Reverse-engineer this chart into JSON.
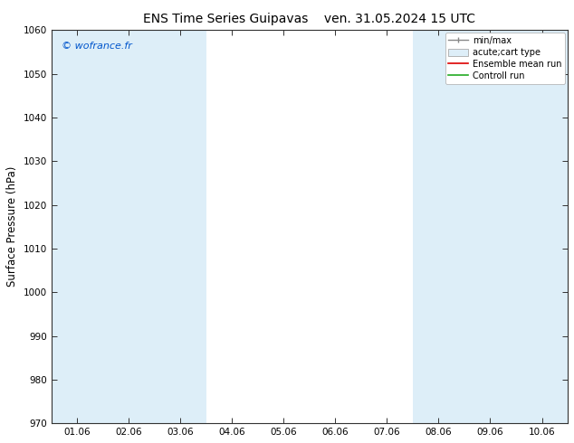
{
  "title_left": "ENS Time Series Guipavas",
  "title_right": "ven. 31.05.2024 15 UTC",
  "ylabel": "Surface Pressure (hPa)",
  "ylim": [
    970,
    1060
  ],
  "yticks": [
    970,
    980,
    990,
    1000,
    1010,
    1020,
    1030,
    1040,
    1050,
    1060
  ],
  "xtick_labels": [
    "01.06",
    "02.06",
    "03.06",
    "04.06",
    "05.06",
    "06.06",
    "07.06",
    "08.06",
    "09.06",
    "10.06"
  ],
  "watermark": "© wofrance.fr",
  "bg_color": "#ffffff",
  "plot_bg_color": "#ffffff",
  "band_color": "#ddeef8",
  "band_positions": [
    0,
    1,
    2,
    7,
    8,
    9
  ],
  "legend_entries": [
    "min/max",
    "acute;cart type",
    "Ensemble mean run",
    "Controll run"
  ],
  "title_fontsize": 10,
  "tick_fontsize": 7.5,
  "ylabel_fontsize": 8.5
}
